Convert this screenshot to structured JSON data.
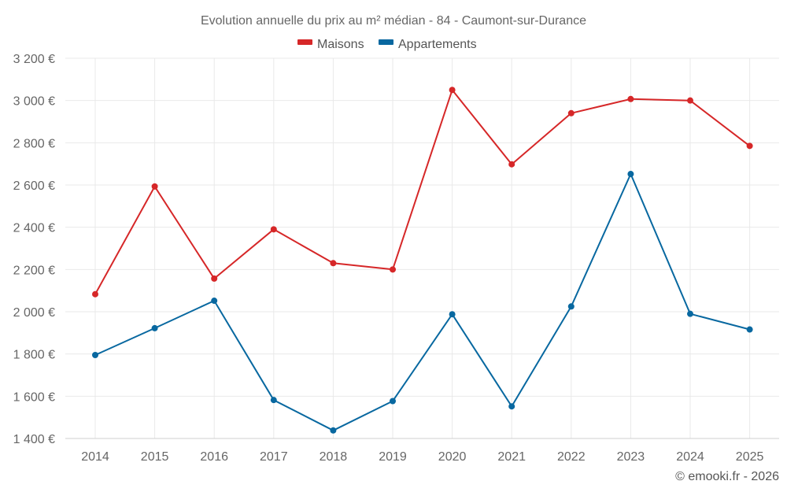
{
  "chart_data": {
    "type": "line",
    "title": "Evolution annuelle du prix au m² médian - 84 - Caumont-sur-Durance",
    "categories": [
      "2014",
      "2015",
      "2016",
      "2017",
      "2018",
      "2019",
      "2020",
      "2021",
      "2022",
      "2023",
      "2024",
      "2025"
    ],
    "series": [
      {
        "name": "Maisons",
        "color": "#d62728",
        "values": [
          2083,
          2593,
          2157,
          2390,
          2230,
          2200,
          3050,
          2698,
          2940,
          3007,
          3000,
          2785
        ]
      },
      {
        "name": "Appartements",
        "color": "#0868a0",
        "values": [
          1795,
          1922,
          2052,
          1582,
          1438,
          1577,
          1988,
          1552,
          2025,
          2652,
          1990,
          1916
        ]
      }
    ],
    "ylim": [
      1400,
      3200
    ],
    "yticks": [
      1400,
      1600,
      1800,
      2000,
      2200,
      2400,
      2600,
      2800,
      3000,
      3200
    ],
    "ytick_labels": [
      "1 400 €",
      "1 600 €",
      "1 800 €",
      "2 000 €",
      "2 200 €",
      "2 400 €",
      "2 600 €",
      "2 800 €",
      "3 000 €",
      "3 200 €"
    ],
    "xlabel": "",
    "ylabel": "",
    "grid": true,
    "legend_position": "top-center"
  },
  "credit": "© emooki.fr - 2026"
}
